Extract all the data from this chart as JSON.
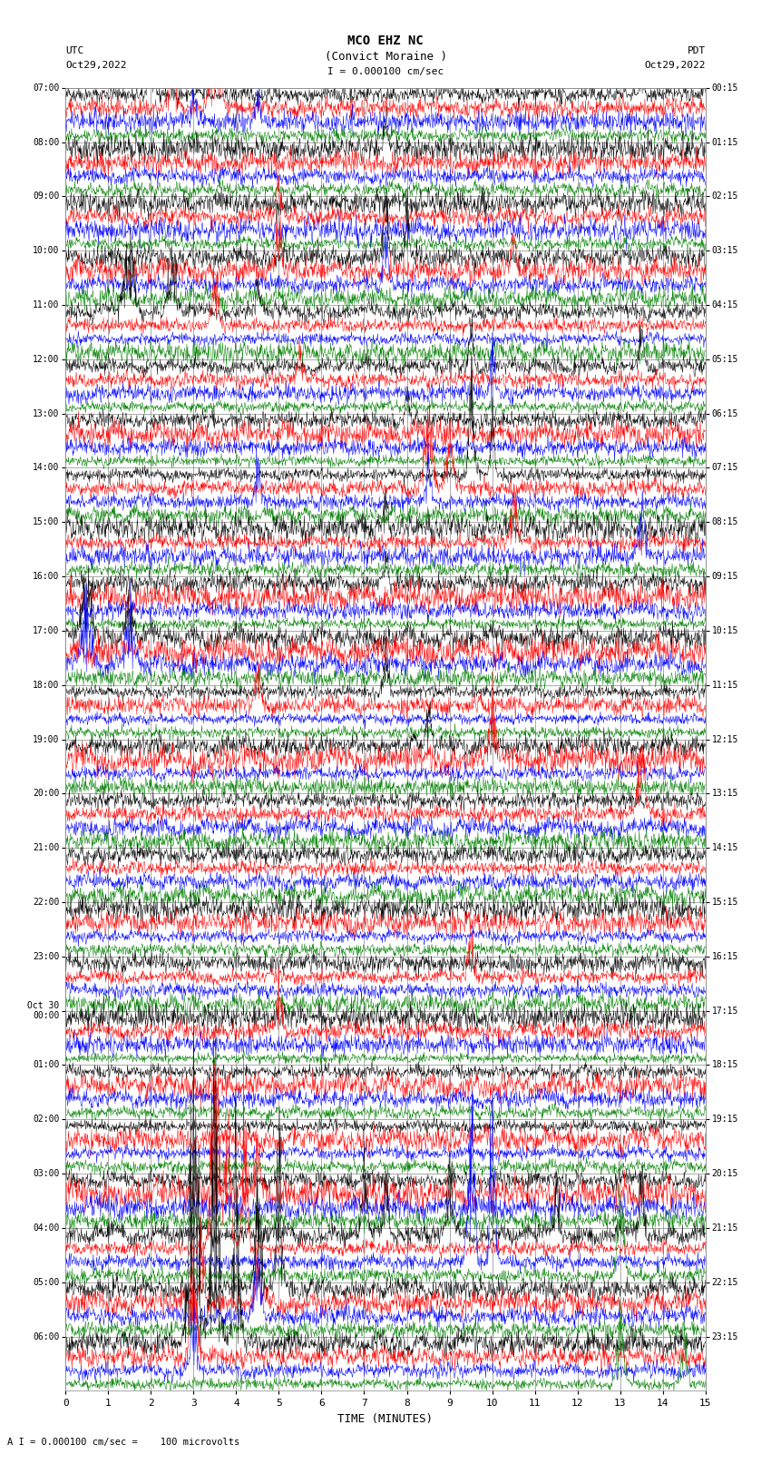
{
  "title_line1": "MCO EHZ NC",
  "title_line2": "(Convict Moraine )",
  "scale_label": "I = 0.000100 cm/sec",
  "bottom_label": "A I = 0.000100 cm/sec =    100 microvolts",
  "xlabel": "TIME (MINUTES)",
  "utc_labels": [
    "07:00",
    "08:00",
    "09:00",
    "10:00",
    "11:00",
    "12:00",
    "13:00",
    "14:00",
    "15:00",
    "16:00",
    "17:00",
    "18:00",
    "19:00",
    "20:00",
    "21:00",
    "22:00",
    "23:00",
    "Oct 30\n00:00",
    "01:00",
    "02:00",
    "03:00",
    "04:00",
    "05:00",
    "06:00"
  ],
  "pdt_labels": [
    "00:15",
    "01:15",
    "02:15",
    "03:15",
    "04:15",
    "05:15",
    "06:15",
    "07:15",
    "08:15",
    "09:15",
    "10:15",
    "11:15",
    "12:15",
    "13:15",
    "14:15",
    "15:15",
    "16:15",
    "17:15",
    "18:15",
    "19:15",
    "20:15",
    "21:15",
    "22:15",
    "23:15"
  ],
  "n_time_slots": 24,
  "traces_per_slot": 4,
  "n_minutes": 15,
  "colors_cycle": [
    "black",
    "red",
    "blue",
    "green"
  ],
  "grid_color": "#888888",
  "bg_color": "white",
  "random_seed": 42,
  "fig_width": 8.5,
  "fig_height": 16.13,
  "dpi": 100,
  "xmin": 0,
  "xmax": 15,
  "xticks": [
    0,
    1,
    2,
    3,
    4,
    5,
    6,
    7,
    8,
    9,
    10,
    11,
    12,
    13,
    14,
    15
  ]
}
